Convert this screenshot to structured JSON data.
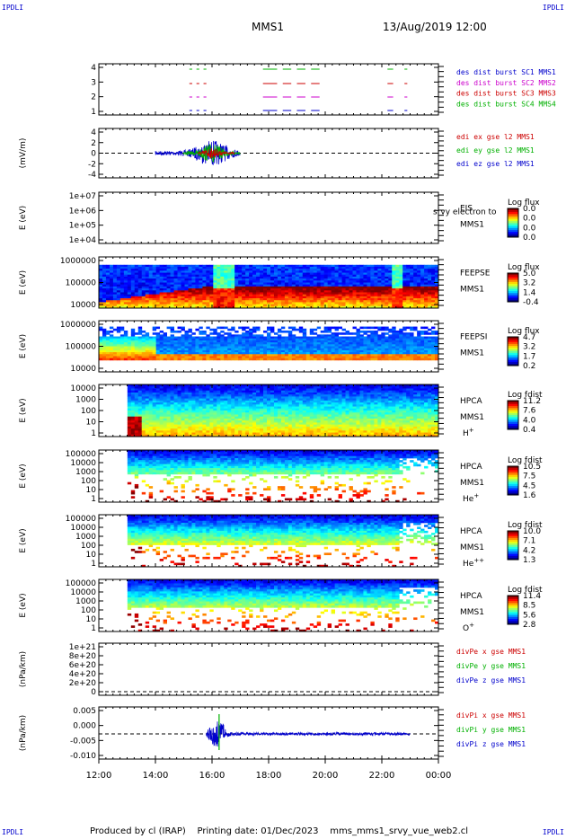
{
  "corner_labels": {
    "top_left": "IPDLI",
    "top_right": "IPDLI",
    "bottom_left": "IPDLI",
    "bottom_right": "IPDLI"
  },
  "header": {
    "spacecraft": "MMS1",
    "datetime": "13/Aug/2019 12:00"
  },
  "footer": {
    "produced_by": "Produced by cl (IRAP)",
    "printing_date": "Printing date: 01/Dec/2023",
    "filename": "mms_mms1_srvy_vue_web2.cl"
  },
  "x_axis": {
    "ticks": [
      "12:00",
      "14:00",
      "16:00",
      "18:00",
      "20:00",
      "22:00",
      "00:00"
    ]
  },
  "colors": {
    "blue": "#0000cc",
    "red": "#cc0000",
    "magenta": "#cc00cc",
    "green": "#00b000"
  },
  "chart_data": [
    {
      "type": "line",
      "panel": "burst",
      "ylabel": "",
      "yticks": [
        "4",
        "3",
        "2",
        "1"
      ],
      "series": [
        {
          "name": "des dist burst SC1 MMS1",
          "color": "#0000cc"
        },
        {
          "name": "des dist burst SC2 MMS2",
          "color": "#cc00cc"
        },
        {
          "name": "des dist burst SC3 MMS3",
          "color": "#cc0000"
        },
        {
          "name": "des dist burst SC4 MMS4",
          "color": "#00b000"
        }
      ]
    },
    {
      "type": "line",
      "panel": "edi",
      "ylabel": "(mV/m)",
      "yticks": [
        "4",
        "2",
        "0",
        "-2",
        "-4"
      ],
      "series": [
        {
          "name": "edi ex gse l2 MMS1",
          "color": "#cc0000"
        },
        {
          "name": "edi ey gse l2 MMS1",
          "color": "#00b000"
        },
        {
          "name": "edi ez gse l2 MMS1",
          "color": "#0000cc"
        }
      ]
    },
    {
      "type": "heatmap",
      "panel": "eis",
      "ylabel": "E (eV)",
      "yticks": [
        "1e+07",
        "1e+06",
        "1e+05",
        "1e+04"
      ],
      "instrument": "EIS",
      "sc": "MMS1",
      "extra": "srvy electron to",
      "cbar_title": "Log flux",
      "cbar_ticks": [
        "0.0",
        "0.0",
        "0.0",
        "0.0"
      ]
    },
    {
      "type": "heatmap",
      "panel": "feepse",
      "ylabel": "E (eV)",
      "yticks": [
        "1000000",
        "100000",
        "10000"
      ],
      "instrument": "FEEPSE",
      "sc": "MMS1",
      "cbar_title": "Log flux",
      "cbar_ticks": [
        "5.0",
        "3.2",
        "1.4",
        "-0.4"
      ]
    },
    {
      "type": "heatmap",
      "panel": "feepsi",
      "ylabel": "E (eV)",
      "yticks": [
        "1000000",
        "100000",
        "10000"
      ],
      "instrument": "FEEPSI",
      "sc": "MMS1",
      "cbar_title": "Log flux",
      "cbar_ticks": [
        "4.7",
        "3.2",
        "1.7",
        "0.2"
      ]
    },
    {
      "type": "heatmap",
      "panel": "hpca_h",
      "ylabel": "E (eV)",
      "yticks": [
        "10000",
        "1000",
        "100",
        "10",
        "1"
      ],
      "instrument": "HPCA",
      "sc": "MMS1",
      "species": "H",
      "species_sup": "+",
      "cbar_title": "Log fdist",
      "cbar_ticks": [
        "11.2",
        "7.6",
        "4.0",
        "0.4"
      ]
    },
    {
      "type": "heatmap",
      "panel": "hpca_he",
      "ylabel": "E (eV)",
      "yticks": [
        "100000",
        "10000",
        "1000",
        "100",
        "10",
        "1"
      ],
      "instrument": "HPCA",
      "sc": "MMS1",
      "species": "He",
      "species_sup": "+",
      "cbar_title": "Log fdist",
      "cbar_ticks": [
        "10.5",
        "7.5",
        "4.5",
        "1.6"
      ]
    },
    {
      "type": "heatmap",
      "panel": "hpca_he2",
      "ylabel": "E (eV)",
      "yticks": [
        "100000",
        "10000",
        "1000",
        "100",
        "10",
        "1"
      ],
      "instrument": "HPCA",
      "sc": "MMS1",
      "species": "He",
      "species_sup": "++",
      "cbar_title": "Log fdist",
      "cbar_ticks": [
        "10.0",
        "7.1",
        "4.2",
        "1.3"
      ]
    },
    {
      "type": "heatmap",
      "panel": "hpca_o",
      "ylabel": "E (eV)",
      "yticks": [
        "100000",
        "10000",
        "1000",
        "100",
        "10",
        "1"
      ],
      "instrument": "HPCA",
      "sc": "MMS1",
      "species": "O",
      "species_sup": "+",
      "cbar_title": "Log fdist",
      "cbar_ticks": [
        "11.4",
        "8.5",
        "5.6",
        "2.8"
      ]
    },
    {
      "type": "line",
      "panel": "divpe",
      "ylabel": "(nPa/km)",
      "yticks": [
        "1e+21",
        "8e+20",
        "6e+20",
        "4e+20",
        "2e+20",
        "0"
      ],
      "series": [
        {
          "name": "divPe x gse MMS1",
          "color": "#cc0000"
        },
        {
          "name": "divPe y gse MMS1",
          "color": "#00b000"
        },
        {
          "name": "divPe z gse MMS1",
          "color": "#0000cc"
        }
      ]
    },
    {
      "type": "line",
      "panel": "divpi",
      "ylabel": "(nPa/km)",
      "yticks": [
        "0.005",
        "0.000",
        "-0.005",
        "-0.010"
      ],
      "series": [
        {
          "name": "divPi x gse MMS1",
          "color": "#cc0000"
        },
        {
          "name": "divPi y gse MMS1",
          "color": "#00b000"
        },
        {
          "name": "divPi z gse MMS1",
          "color": "#0000cc"
        }
      ]
    }
  ]
}
